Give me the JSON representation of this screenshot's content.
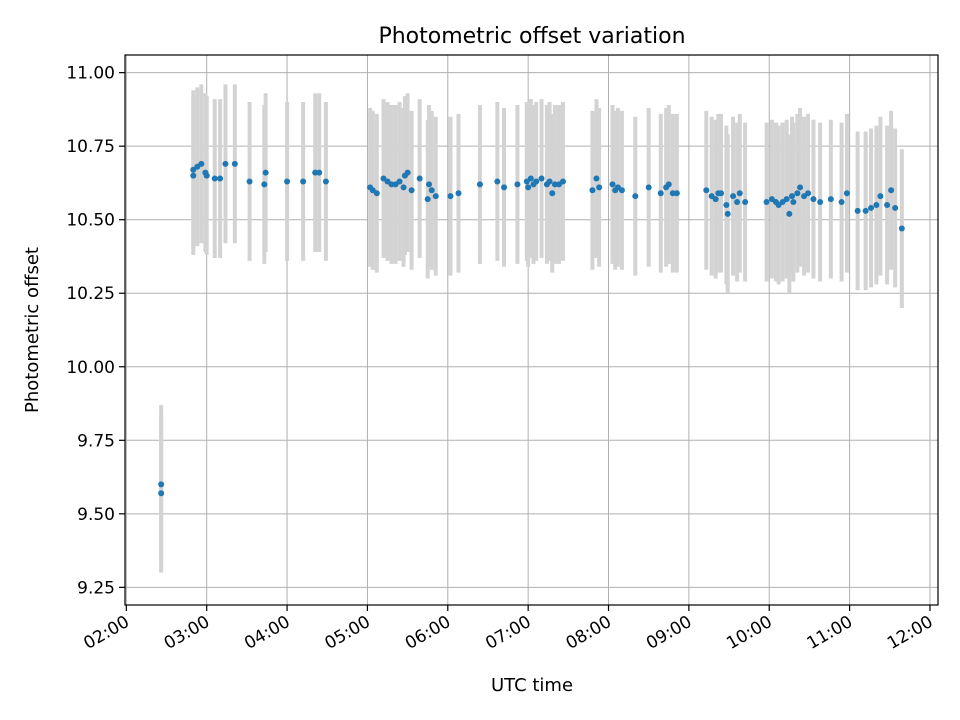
{
  "chart_data": {
    "type": "scatter",
    "title": "Photometric offset variation",
    "xlabel": "UTC time",
    "ylabel": "Photometric offset",
    "x_unit": "UTC time (HH:MM)",
    "xlim": [
      "01:59",
      "12:06"
    ],
    "ylim": [
      9.19,
      11.06
    ],
    "grid": true,
    "x_ticks": [
      "02:00",
      "03:00",
      "04:00",
      "05:00",
      "06:00",
      "07:00",
      "08:00",
      "09:00",
      "10:00",
      "11:00",
      "12:00"
    ],
    "y_ticks": [
      "9.25",
      "9.50",
      "9.75",
      "10.00",
      "10.25",
      "10.50",
      "10.75",
      "11.00"
    ],
    "colors": {
      "point": "#1f77b4",
      "errorbar": "#d3d3d3",
      "grid": "#b0b0b0"
    },
    "error_half_width": 0.27,
    "series": [
      {
        "points": [
          [
            "02:26",
            9.6
          ],
          [
            "02:26",
            9.57
          ],
          [
            "02:50",
            10.65
          ],
          [
            "02:50",
            10.67
          ],
          [
            "02:53",
            10.68
          ],
          [
            "02:56",
            10.69
          ],
          [
            "02:59",
            10.66
          ],
          [
            "03:00",
            10.65
          ],
          [
            "03:06",
            10.64
          ],
          [
            "03:10",
            10.64
          ],
          [
            "03:14",
            10.69
          ],
          [
            "03:21",
            10.69
          ],
          [
            "03:32",
            10.63
          ],
          [
            "03:43",
            10.62
          ],
          [
            "03:44",
            10.66
          ],
          [
            "04:00",
            10.63
          ],
          [
            "04:12",
            10.63
          ],
          [
            "04:21",
            10.66
          ],
          [
            "04:24",
            10.66
          ],
          [
            "04:29",
            10.63
          ],
          [
            "05:02",
            10.61
          ],
          [
            "05:04",
            10.6
          ],
          [
            "05:07",
            10.59
          ],
          [
            "05:12",
            10.64
          ],
          [
            "05:15",
            10.63
          ],
          [
            "05:18",
            10.62
          ],
          [
            "05:21",
            10.62
          ],
          [
            "05:24",
            10.63
          ],
          [
            "05:27",
            10.61
          ],
          [
            "05:28",
            10.65
          ],
          [
            "05:30",
            10.66
          ],
          [
            "05:33",
            10.6
          ],
          [
            "05:39",
            10.64
          ],
          [
            "05:45",
            10.57
          ],
          [
            "05:46",
            10.62
          ],
          [
            "05:48",
            10.6
          ],
          [
            "05:51",
            10.58
          ],
          [
            "06:02",
            10.58
          ],
          [
            "06:08",
            10.59
          ],
          [
            "06:24",
            10.62
          ],
          [
            "06:37",
            10.63
          ],
          [
            "06:42",
            10.61
          ],
          [
            "06:52",
            10.62
          ],
          [
            "06:59",
            10.63
          ],
          [
            "07:00",
            10.61
          ],
          [
            "07:02",
            10.64
          ],
          [
            "07:04",
            10.62
          ],
          [
            "07:06",
            10.63
          ],
          [
            "07:10",
            10.64
          ],
          [
            "07:14",
            10.62
          ],
          [
            "07:16",
            10.63
          ],
          [
            "07:18",
            10.59
          ],
          [
            "07:20",
            10.62
          ],
          [
            "07:23",
            10.62
          ],
          [
            "07:26",
            10.63
          ],
          [
            "07:48",
            10.6
          ],
          [
            "07:51",
            10.64
          ],
          [
            "07:53",
            10.61
          ],
          [
            "08:03",
            10.62
          ],
          [
            "08:05",
            10.6
          ],
          [
            "08:07",
            10.61
          ],
          [
            "08:10",
            10.6
          ],
          [
            "08:20",
            10.58
          ],
          [
            "08:30",
            10.61
          ],
          [
            "08:39",
            10.59
          ],
          [
            "08:43",
            10.61
          ],
          [
            "08:45",
            10.62
          ],
          [
            "08:48",
            10.59
          ],
          [
            "08:51",
            10.59
          ],
          [
            "09:13",
            10.6
          ],
          [
            "09:17",
            10.58
          ],
          [
            "09:20",
            10.57
          ],
          [
            "09:22",
            10.59
          ],
          [
            "09:24",
            10.59
          ],
          [
            "09:28",
            10.55
          ],
          [
            "09:29",
            10.52
          ],
          [
            "09:33",
            10.58
          ],
          [
            "09:36",
            10.56
          ],
          [
            "09:38",
            10.59
          ],
          [
            "09:42",
            10.56
          ],
          [
            "09:58",
            10.56
          ],
          [
            "10:02",
            10.57
          ],
          [
            "10:05",
            10.56
          ],
          [
            "10:07",
            10.55
          ],
          [
            "10:10",
            10.56
          ],
          [
            "10:13",
            10.57
          ],
          [
            "10:15",
            10.52
          ],
          [
            "10:17",
            10.58
          ],
          [
            "10:18",
            10.56
          ],
          [
            "10:21",
            10.59
          ],
          [
            "10:23",
            10.61
          ],
          [
            "10:26",
            10.58
          ],
          [
            "10:29",
            10.59
          ],
          [
            "10:33",
            10.57
          ],
          [
            "10:38",
            10.56
          ],
          [
            "10:46",
            10.57
          ],
          [
            "10:54",
            10.56
          ],
          [
            "10:58",
            10.59
          ],
          [
            "11:06",
            10.53
          ],
          [
            "11:12",
            10.53
          ],
          [
            "11:16",
            10.54
          ],
          [
            "11:20",
            10.55
          ],
          [
            "11:23",
            10.58
          ],
          [
            "11:28",
            10.55
          ],
          [
            "11:31",
            10.6
          ],
          [
            "11:34",
            10.54
          ],
          [
            "11:39",
            10.47
          ]
        ]
      }
    ]
  }
}
